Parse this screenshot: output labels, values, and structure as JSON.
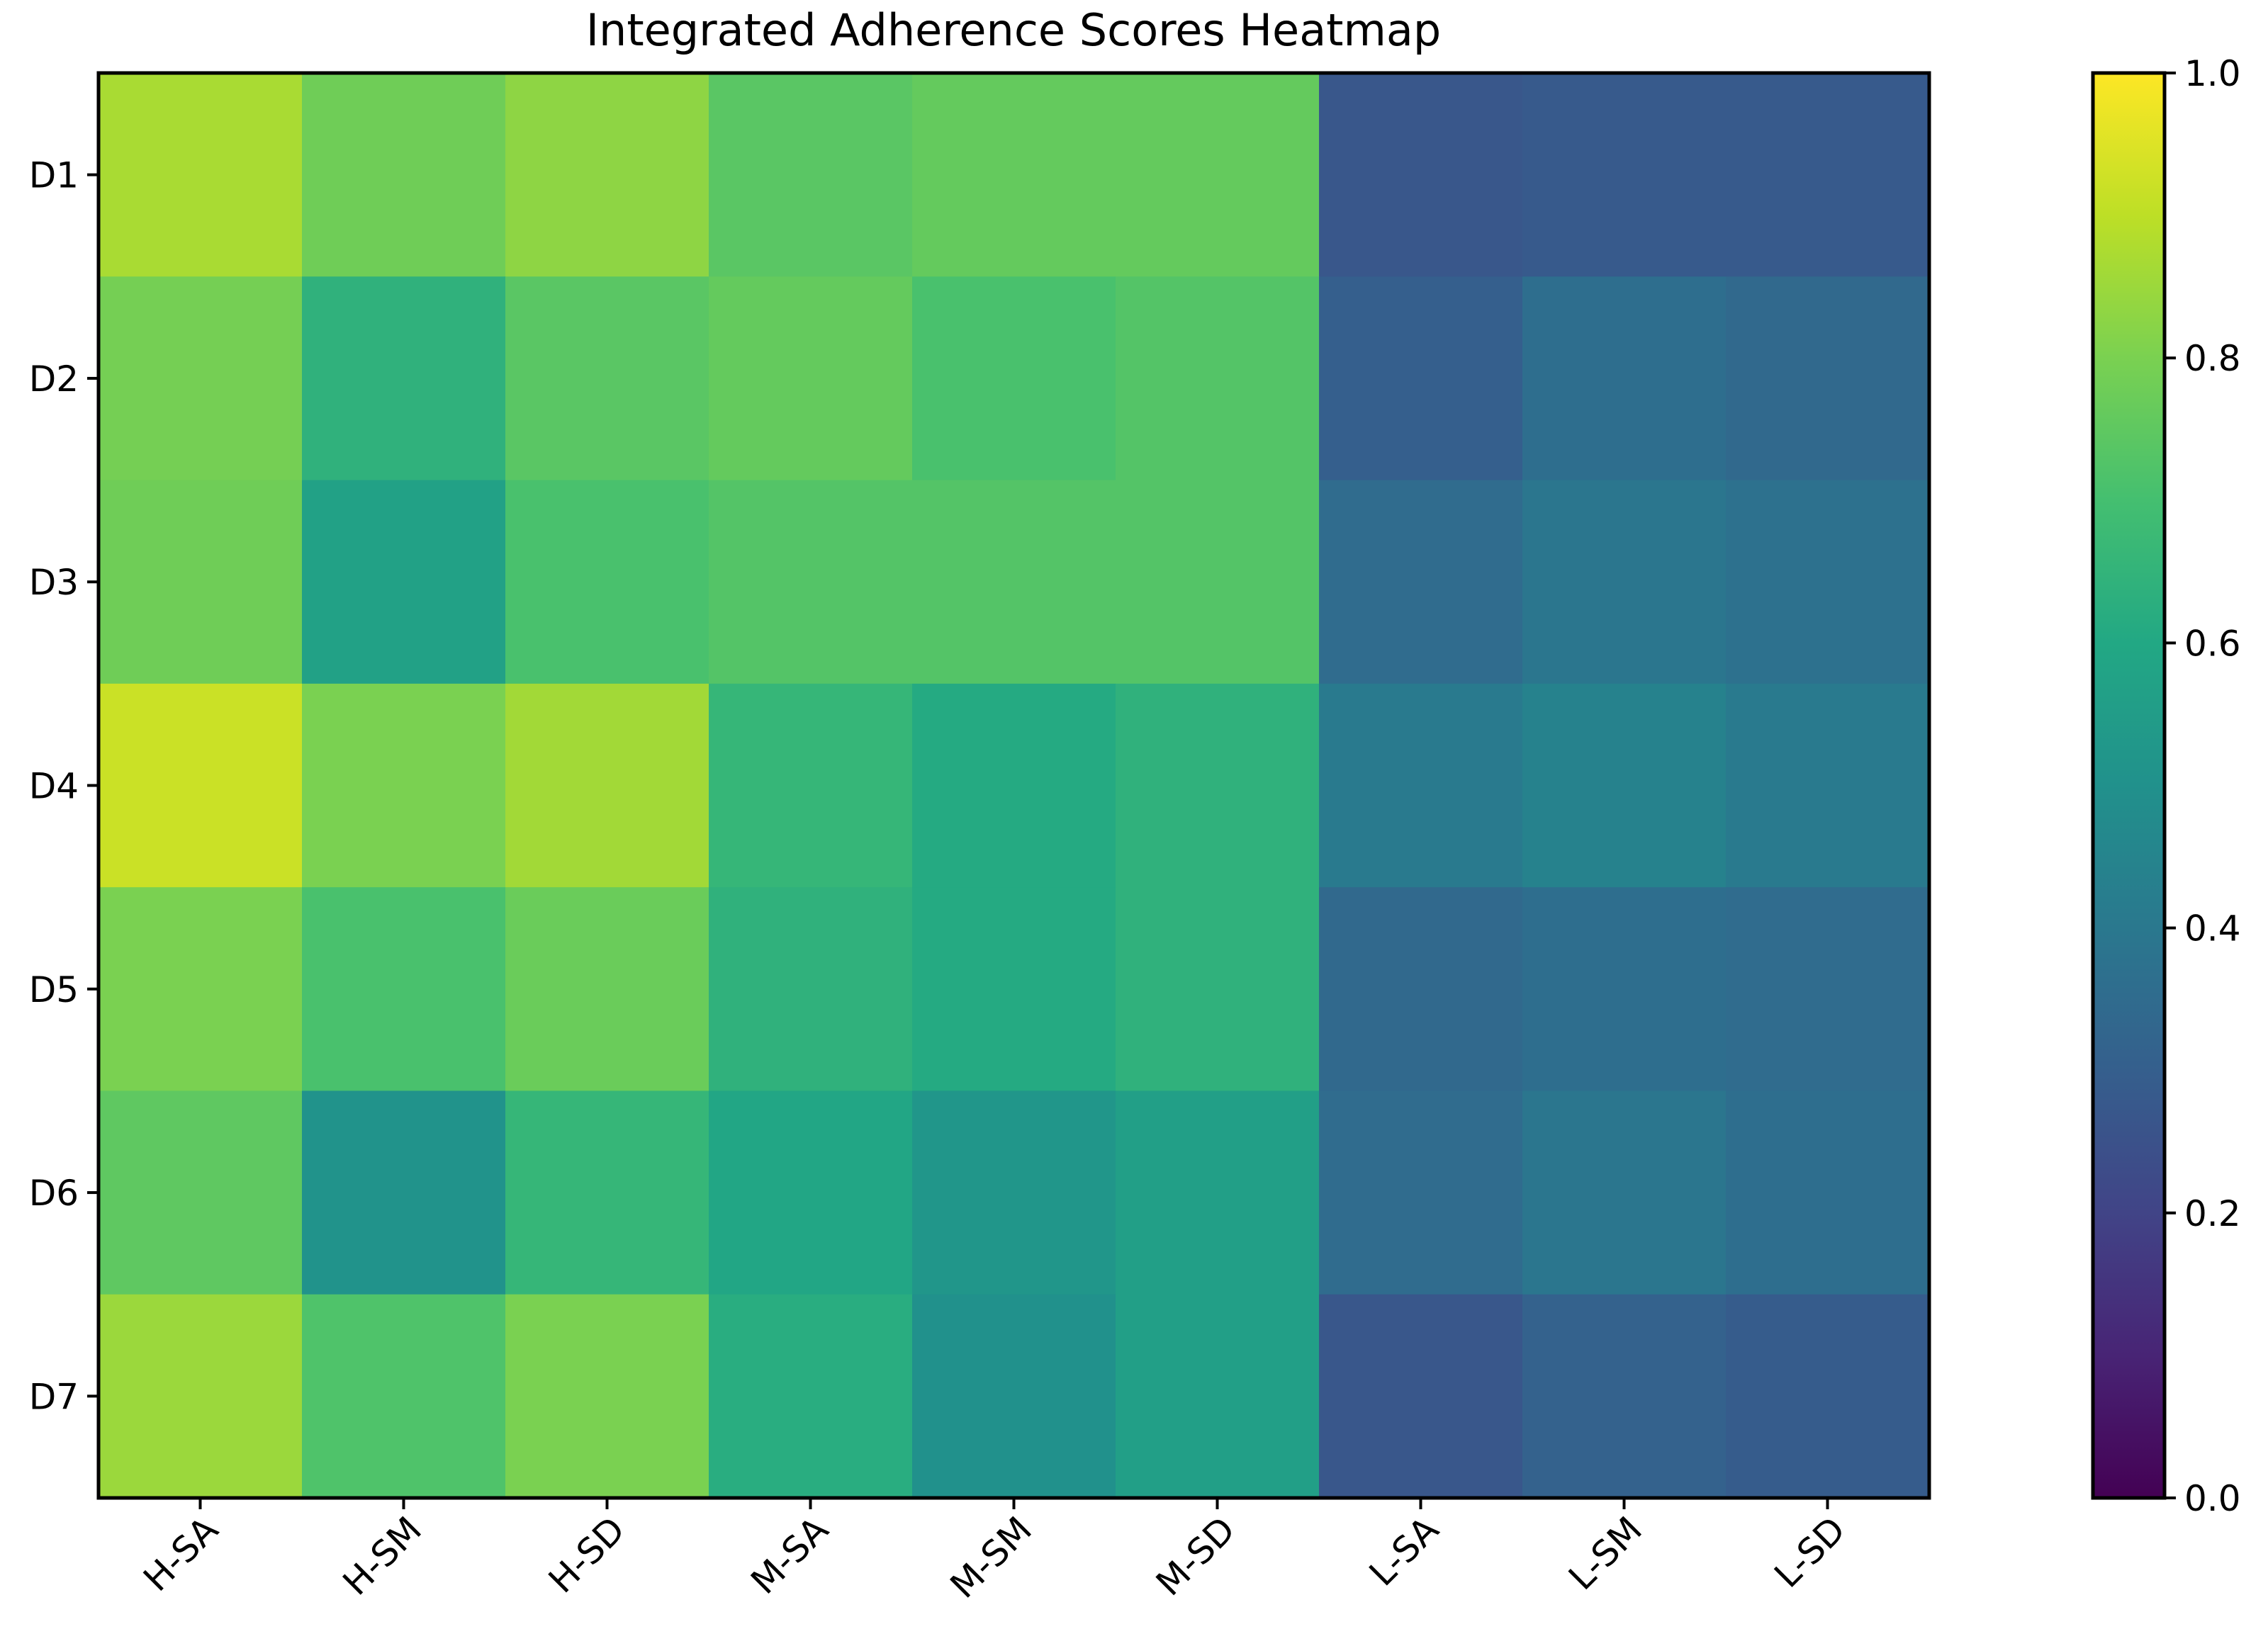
{
  "chart_data": {
    "type": "heatmap",
    "title": "Integrated Adherence Scores Heatmap",
    "xlabel": "",
    "ylabel": "",
    "rows": [
      "D1",
      "D2",
      "D3",
      "D4",
      "D5",
      "D6",
      "D7"
    ],
    "columns": [
      "H-SA",
      "H-SM",
      "H-SD",
      "M-SA",
      "M-SM",
      "M-SD",
      "L-SA",
      "L-SM",
      "L-SD"
    ],
    "values": [
      [
        0.87,
        0.78,
        0.83,
        0.74,
        0.76,
        0.76,
        0.27,
        0.28,
        0.28
      ],
      [
        0.79,
        0.64,
        0.74,
        0.76,
        0.71,
        0.73,
        0.3,
        0.36,
        0.34
      ],
      [
        0.78,
        0.57,
        0.71,
        0.73,
        0.73,
        0.73,
        0.35,
        0.39,
        0.37
      ],
      [
        0.92,
        0.8,
        0.86,
        0.66,
        0.61,
        0.64,
        0.41,
        0.44,
        0.41
      ],
      [
        0.8,
        0.71,
        0.77,
        0.64,
        0.61,
        0.64,
        0.34,
        0.36,
        0.35
      ],
      [
        0.75,
        0.51,
        0.66,
        0.59,
        0.52,
        0.56,
        0.35,
        0.39,
        0.36
      ],
      [
        0.85,
        0.72,
        0.8,
        0.62,
        0.5,
        0.56,
        0.27,
        0.31,
        0.29
      ]
    ],
    "colormap": "viridis",
    "vmin": 0.0,
    "vmax": 1.0,
    "colorbar_ticks": [
      "0.0",
      "0.2",
      "0.4",
      "0.6",
      "0.8",
      "1.0"
    ],
    "colorbar_tick_values": [
      0.0,
      0.2,
      0.4,
      0.6,
      0.8,
      1.0
    ]
  }
}
